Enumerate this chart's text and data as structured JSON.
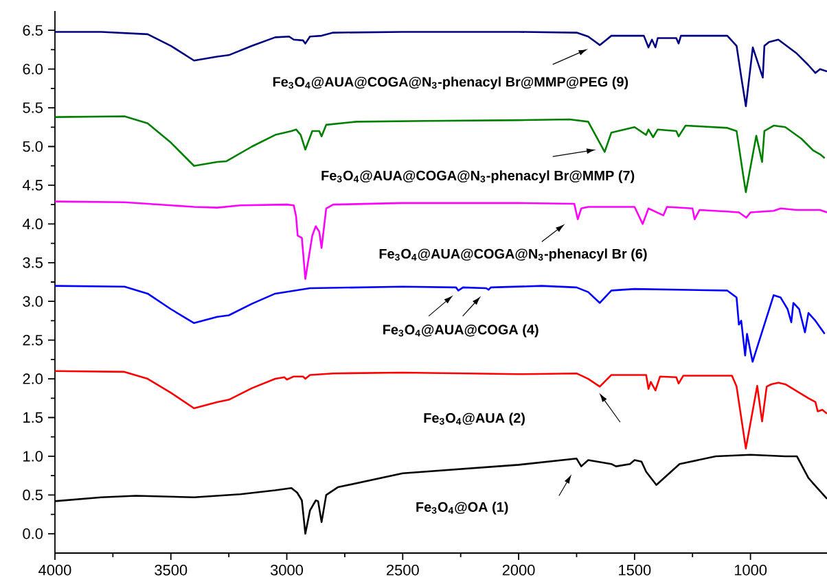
{
  "chart_data": {
    "type": "line",
    "annotations": [
      "Fe$_{3}$O$_{4}$@OA (1)",
      "Fe$_{3}$O$_{4}$@AUA (2)",
      "Fe$_{3}$O$_{4}$@AUA@COGA (4)",
      "Fe$_{3}$O$_{4}$@AUA@COGA@N$_{3}$-phenacyl Br (6)",
      "Fe$_{3}$O$_{4}$@AUA@COGA@N$_{3}$-phenacyl Br@MMP (7)",
      "Fe$_{3}$O$_{4}$@AUA@COGA@N$_{3}$-phenacyl Br@MMP@PEG (9)"
    ],
    "xlim": [
      4000,
      670
    ],
    "xticks": [
      4000,
      3500,
      3000,
      2500,
      2000,
      1500,
      1000
    ],
    "ylim": [
      -0.25,
      6.75
    ],
    "yticks": [
      {
        "value": 0,
        "label": "0.0"
      },
      0.5,
      {
        "value": 1,
        "label": "1.0"
      },
      1.5,
      {
        "value": 2,
        "label": "2.0"
      },
      2.5,
      {
        "value": 3,
        "label": "3.0"
      },
      3.5,
      {
        "value": 4,
        "label": "4.0"
      },
      4.5,
      {
        "value": 5,
        "label": "5.0"
      },
      5.5,
      {
        "value": 6,
        "label": "6.0"
      },
      6.5
    ],
    "series": [
      {
        "color": "#000000",
        "x": [
          4000,
          3800,
          3650,
          3400,
          3200,
          3050,
          2980,
          2955,
          2935,
          2920,
          2900,
          2875,
          2865,
          2850,
          2830,
          2780,
          2500,
          2000,
          1750,
          1730,
          1700,
          1600,
          1580,
          1520,
          1500,
          1470,
          1450,
          1406,
          1306,
          1150,
          1000,
          850,
          800,
          750,
          730,
          700,
          670
        ],
        "values": [
          0.42,
          0.47,
          0.49,
          0.47,
          0.51,
          0.56,
          0.59,
          0.53,
          0.43,
          0.0,
          0.3,
          0.43,
          0.42,
          0.15,
          0.5,
          0.6,
          0.78,
          0.89,
          0.97,
          0.87,
          0.95,
          0.9,
          0.87,
          0.9,
          0.95,
          0.93,
          0.8,
          0.63,
          0.9,
          1.0,
          1.02,
          1.0,
          1.0,
          0.72,
          0.65,
          0.55,
          0.45
        ]
      },
      {
        "color": "#ff0000",
        "x": [
          4000,
          3700,
          3600,
          3500,
          3400,
          3300,
          3250,
          3150,
          3050,
          3010,
          3000,
          2970,
          2930,
          2920,
          2900,
          2800,
          2500,
          2000,
          1750,
          1700,
          1650,
          1600,
          1450,
          1440,
          1430,
          1410,
          1390,
          1320,
          1310,
          1290,
          1080,
          1060,
          1020,
          971,
          950,
          930,
          910,
          880,
          850,
          750,
          720,
          710,
          690,
          670
        ],
        "values": [
          2.1,
          2.09,
          2.0,
          1.82,
          1.62,
          1.7,
          1.73,
          1.88,
          2.0,
          2.02,
          1.99,
          2.03,
          2.03,
          2.0,
          2.05,
          2.07,
          2.08,
          2.06,
          2.07,
          2.0,
          1.9,
          2.05,
          2.05,
          1.87,
          1.96,
          1.85,
          2.03,
          2.02,
          1.94,
          2.04,
          2.04,
          1.9,
          1.1,
          1.91,
          1.45,
          1.9,
          1.93,
          1.95,
          1.93,
          1.75,
          1.7,
          1.58,
          1.6,
          1.55
        ]
      },
      {
        "color": "#0000ff",
        "x": [
          4000,
          3700,
          3600,
          3500,
          3400,
          3300,
          3250,
          3150,
          3050,
          2900,
          2500,
          2270,
          2260,
          2240,
          2140,
          2130,
          2120,
          1900,
          1750,
          1700,
          1650,
          1600,
          1500,
          1100,
          1060,
          1050,
          1040,
          1023,
          1015,
          991,
          900,
          870,
          840,
          824,
          815,
          790,
          765,
          750,
          720,
          680
        ],
        "values": [
          3.2,
          3.19,
          3.1,
          2.9,
          2.72,
          2.8,
          2.82,
          2.97,
          3.1,
          3.17,
          3.19,
          3.18,
          3.14,
          3.18,
          3.17,
          3.15,
          3.18,
          3.2,
          3.18,
          3.12,
          2.98,
          3.14,
          3.16,
          3.14,
          3.05,
          2.7,
          2.75,
          2.3,
          2.58,
          2.22,
          3.08,
          3.05,
          2.9,
          2.73,
          2.98,
          2.9,
          2.6,
          2.85,
          2.75,
          2.58
        ]
      },
      {
        "color": "#ff00ff",
        "x": [
          4000,
          3700,
          3500,
          3400,
          3300,
          3200,
          3000,
          2970,
          2960,
          2953,
          2935,
          2920,
          2890,
          2875,
          2860,
          2850,
          2830,
          2800,
          2500,
          2000,
          1760,
          1745,
          1730,
          1700,
          1600,
          1500,
          1465,
          1440,
          1376,
          1360,
          1250,
          1241,
          1220,
          1100,
          1050,
          1018,
          1000,
          900,
          870,
          800,
          700,
          670
        ],
        "values": [
          4.29,
          4.28,
          4.24,
          4.22,
          4.21,
          4.24,
          4.25,
          4.24,
          4.1,
          3.85,
          3.82,
          3.29,
          3.85,
          3.97,
          3.9,
          3.69,
          4.2,
          4.25,
          4.27,
          4.27,
          4.26,
          4.06,
          4.2,
          4.22,
          4.22,
          4.22,
          4.0,
          4.2,
          4.11,
          4.22,
          4.2,
          4.06,
          4.18,
          4.16,
          4.15,
          4.08,
          4.15,
          4.17,
          4.2,
          4.18,
          4.18,
          4.15
        ]
      },
      {
        "color": "#008000",
        "x": [
          4000,
          3700,
          3600,
          3500,
          3400,
          3300,
          3260,
          3150,
          3050,
          2980,
          2960,
          2940,
          2920,
          2890,
          2860,
          2850,
          2830,
          2700,
          2400,
          2000,
          1780,
          1700,
          1660,
          1629,
          1600,
          1500,
          1450,
          1440,
          1420,
          1400,
          1320,
          1310,
          1280,
          1100,
          1060,
          1030,
          1020,
          975,
          950,
          940,
          900,
          850,
          780,
          730,
          700,
          680
        ],
        "values": [
          5.38,
          5.39,
          5.3,
          5.05,
          4.75,
          4.8,
          4.81,
          5.0,
          5.15,
          5.2,
          5.22,
          5.15,
          4.96,
          5.2,
          5.2,
          5.13,
          5.28,
          5.32,
          5.33,
          5.34,
          5.35,
          5.32,
          5.1,
          4.93,
          5.18,
          5.25,
          5.15,
          5.22,
          5.12,
          5.22,
          5.2,
          5.13,
          5.27,
          5.24,
          5.2,
          4.6,
          4.41,
          5.14,
          4.8,
          5.2,
          5.27,
          5.25,
          5.1,
          4.95,
          4.9,
          4.85
        ]
      },
      {
        "color": "#000080",
        "x": [
          4000,
          3800,
          3600,
          3500,
          3400,
          3300,
          3250,
          3150,
          3050,
          2990,
          2970,
          2930,
          2920,
          2900,
          2850,
          2800,
          2500,
          2000,
          1750,
          1700,
          1650,
          1600,
          1460,
          1440,
          1425,
          1410,
          1400,
          1320,
          1310,
          1300,
          1100,
          1060,
          1040,
          1020,
          990,
          947,
          940,
          920,
          880,
          800,
          750,
          720,
          700,
          670
        ],
        "values": [
          6.48,
          6.48,
          6.45,
          6.3,
          6.11,
          6.16,
          6.18,
          6.3,
          6.41,
          6.42,
          6.38,
          6.37,
          6.33,
          6.42,
          6.43,
          6.47,
          6.48,
          6.48,
          6.47,
          6.42,
          6.31,
          6.43,
          6.43,
          6.28,
          6.38,
          6.28,
          6.4,
          6.4,
          6.33,
          6.43,
          6.43,
          6.3,
          5.9,
          5.52,
          6.28,
          5.89,
          6.3,
          6.35,
          6.38,
          6.2,
          6.05,
          5.95,
          6.0,
          5.97
        ]
      }
    ]
  }
}
